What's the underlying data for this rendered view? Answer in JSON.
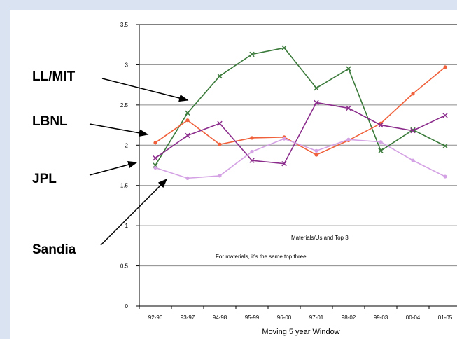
{
  "chart_data": {
    "type": "line",
    "categories": [
      "92-96",
      "93-97",
      "94-98",
      "95-99",
      "96-00",
      "97-01",
      "98-02",
      "99-03",
      "00-04",
      "01-05"
    ],
    "series": [
      {
        "name": "LL/MIT",
        "color": "#3a7a3a",
        "marker": "x",
        "values": [
          1.75,
          2.4,
          2.86,
          3.13,
          3.21,
          2.71,
          2.95,
          1.93,
          2.19,
          1.99
        ]
      },
      {
        "name": "LBNL",
        "color": "#f0603a",
        "marker": "circle",
        "values": [
          2.03,
          2.31,
          2.01,
          2.09,
          2.1,
          1.88,
          2.06,
          2.27,
          2.64,
          2.97
        ]
      },
      {
        "name": "JPL",
        "color": "#8b2c8c",
        "marker": "x",
        "values": [
          1.84,
          2.12,
          2.27,
          1.81,
          1.77,
          2.53,
          2.46,
          2.25,
          2.18,
          2.37
        ]
      },
      {
        "name": "Sandia",
        "color": "#d4a2e4",
        "marker": "circle",
        "values": [
          1.72,
          1.59,
          1.62,
          1.92,
          2.08,
          1.93,
          2.07,
          2.04,
          1.81,
          1.61
        ]
      }
    ],
    "ylim": [
      0,
      3.5
    ],
    "yticks": [
      "0",
      "0.5",
      "1",
      "1.5",
      "2",
      "2.5",
      "3",
      "3.5"
    ],
    "xlabel": "Moving 5 year Window",
    "ylabel": "",
    "grid": "horizontal",
    "annotations": {
      "title_note": "Materials/Us and Top 3",
      "note": "For materials, it's the same top three."
    },
    "callouts": [
      "LL/MIT",
      "LBNL",
      "JPL",
      "Sandia"
    ]
  }
}
